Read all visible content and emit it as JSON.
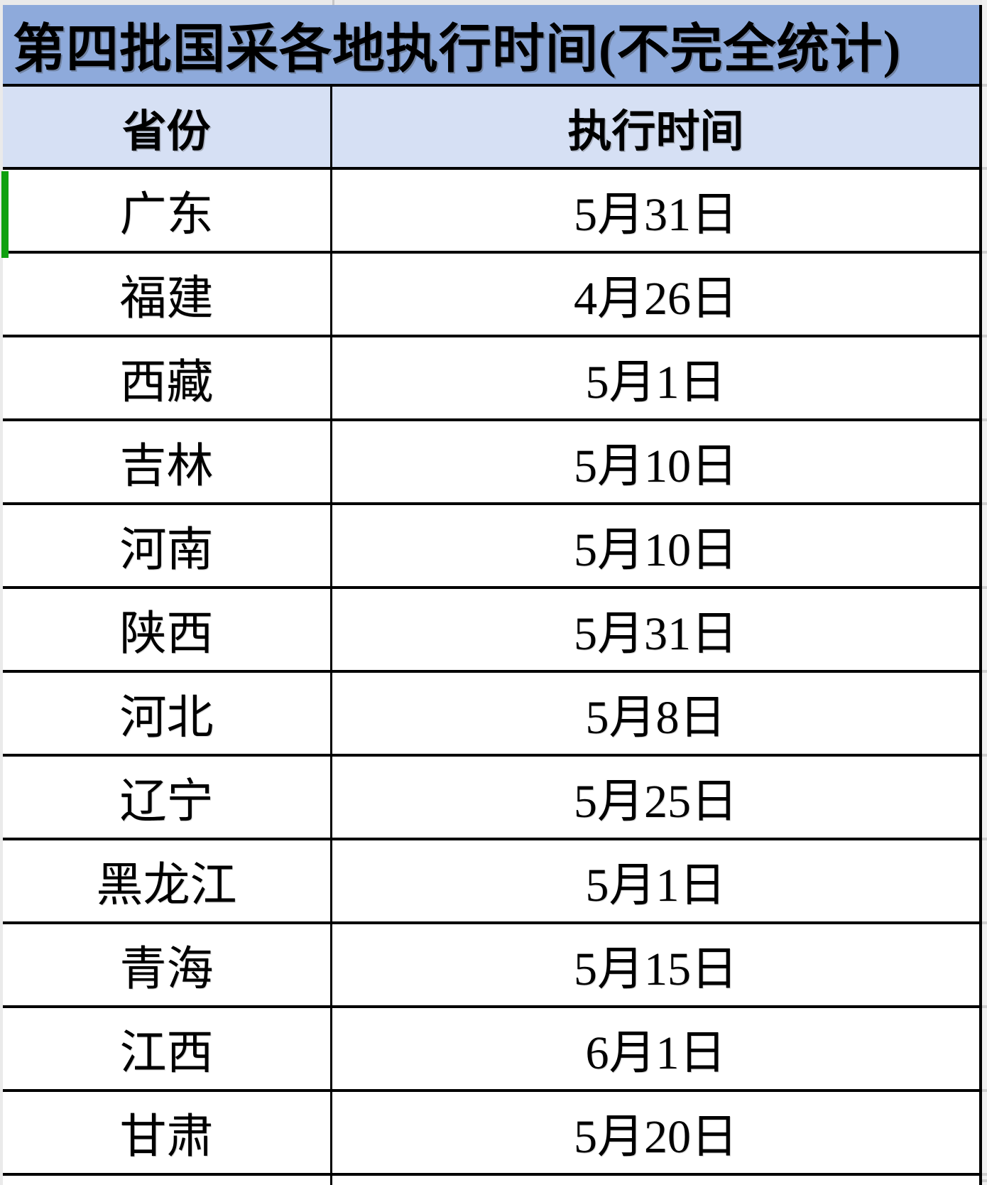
{
  "table": {
    "title": "第四批国采各地执行时间(不完全统计)",
    "columns": [
      "省份",
      "执行时间"
    ],
    "rows": [
      {
        "province": "广东",
        "date": "5月31日"
      },
      {
        "province": "福建",
        "date": "4月26日"
      },
      {
        "province": "西藏",
        "date": "5月1日"
      },
      {
        "province": "吉林",
        "date": "5月10日"
      },
      {
        "province": "河南",
        "date": "5月10日"
      },
      {
        "province": "陕西",
        "date": "5月31日"
      },
      {
        "province": "河北",
        "date": "5月8日"
      },
      {
        "province": "辽宁",
        "date": "5月25日"
      },
      {
        "province": "黑龙江",
        "date": "5月1日"
      },
      {
        "province": "青海",
        "date": "5月15日"
      },
      {
        "province": "江西",
        "date": "6月1日"
      },
      {
        "province": "甘肃",
        "date": "5月20日"
      }
    ],
    "selected_row_province": "广东"
  },
  "colors": {
    "title_bg": "#8EAADB",
    "header_bg": "#D6E0F4",
    "grid_border": "#000000",
    "selection_green": "#0FA00F",
    "margin_gray": "#EAEAEA"
  }
}
